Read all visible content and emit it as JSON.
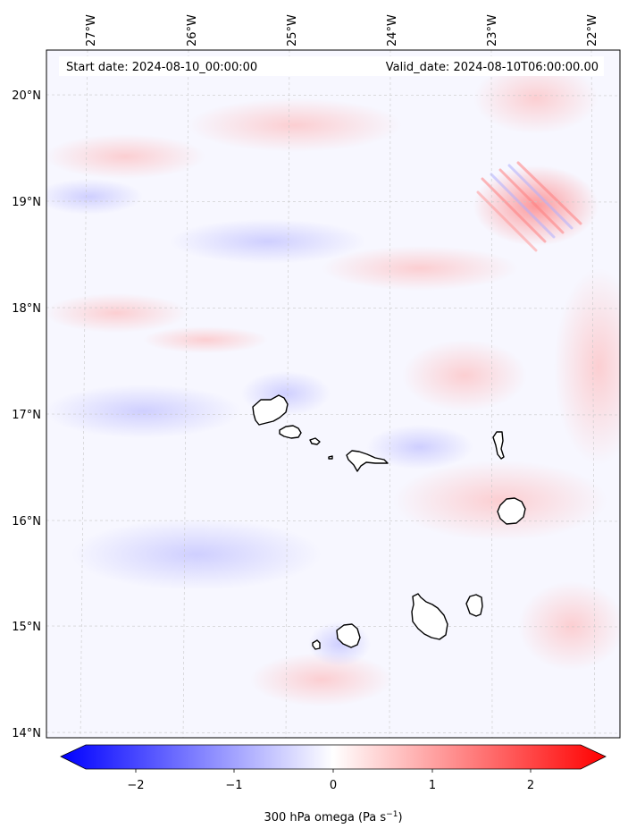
{
  "header": {
    "start_date": "Start date: 2024-08-10_00:00:00",
    "valid_date": "Valid_date: 2024-08-10T06:00:00.00"
  },
  "axes": {
    "lon_labels": [
      "27°W",
      "26°W",
      "25°W",
      "24°W",
      "23°W",
      "22°W"
    ],
    "lat_labels": [
      "20°N",
      "19°N",
      "18°N",
      "17°N",
      "16°N",
      "15°N",
      "14°N"
    ]
  },
  "colorbar": {
    "ticks": [
      "−2",
      "−1",
      "0",
      "1",
      "2"
    ],
    "label_main": "300 hPa omega (Pa s",
    "label_sup": "−1",
    "label_end": ")",
    "min_color": "#0000ff",
    "mid_color": "#ffffff",
    "max_color": "#ff0000"
  },
  "islands": [
    "Santo Antão",
    "São Vicente",
    "Santa Luzia",
    "São Nicolau",
    "Sal",
    "Boa Vista",
    "Fogo",
    "Brava",
    "Santiago",
    "Maio"
  ]
}
